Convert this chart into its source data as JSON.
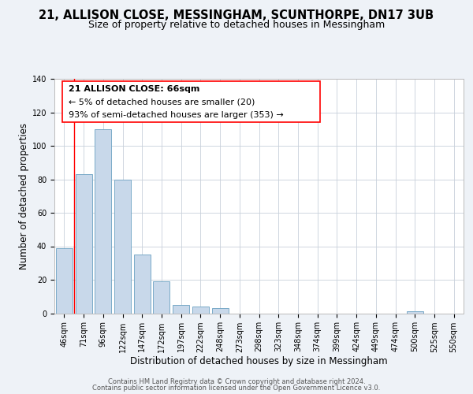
{
  "title": "21, ALLISON CLOSE, MESSINGHAM, SCUNTHORPE, DN17 3UB",
  "subtitle": "Size of property relative to detached houses in Messingham",
  "xlabel": "Distribution of detached houses by size in Messingham",
  "ylabel": "Number of detached properties",
  "bar_labels": [
    "46sqm",
    "71sqm",
    "96sqm",
    "122sqm",
    "147sqm",
    "172sqm",
    "197sqm",
    "222sqm",
    "248sqm",
    "273sqm",
    "298sqm",
    "323sqm",
    "348sqm",
    "374sqm",
    "399sqm",
    "424sqm",
    "449sqm",
    "474sqm",
    "500sqm",
    "525sqm",
    "550sqm"
  ],
  "bar_values": [
    39,
    83,
    110,
    80,
    35,
    19,
    5,
    4,
    3,
    0,
    0,
    0,
    0,
    0,
    0,
    0,
    0,
    0,
    1,
    0,
    0
  ],
  "bar_color": "#c8d8ea",
  "bar_edge_color": "#7aaac8",
  "ylim": [
    0,
    140
  ],
  "yticks": [
    0,
    20,
    40,
    60,
    80,
    100,
    120,
    140
  ],
  "annotation_line1": "21 ALLISON CLOSE: 66sqm",
  "annotation_line2": "← 5% of detached houses are smaller (20)",
  "annotation_line3": "93% of semi-detached houses are larger (353) →",
  "footer_line1": "Contains HM Land Registry data © Crown copyright and database right 2024.",
  "footer_line2": "Contains public sector information licensed under the Open Government Licence v3.0.",
  "background_color": "#eef2f7",
  "plot_bg_color": "#ffffff",
  "title_fontsize": 10.5,
  "subtitle_fontsize": 9,
  "axis_label_fontsize": 8.5,
  "tick_fontsize": 7,
  "annotation_fontsize": 8,
  "footer_fontsize": 6
}
